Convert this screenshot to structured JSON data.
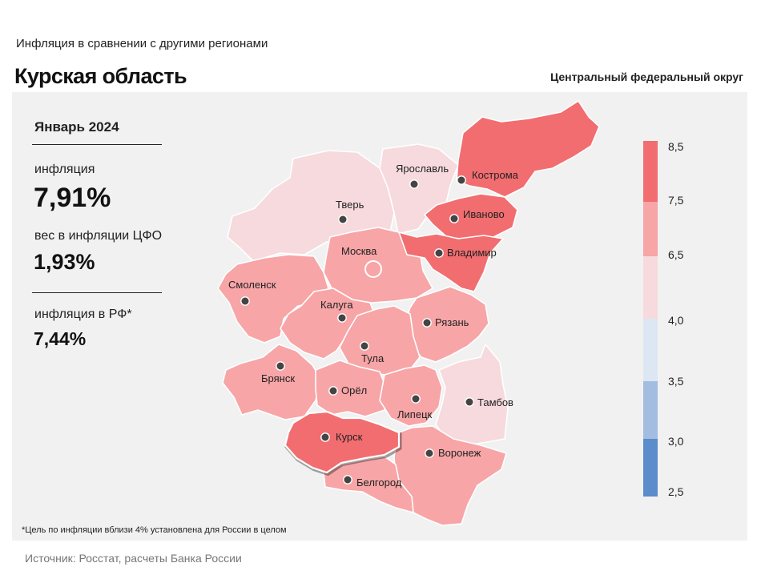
{
  "header": {
    "subtitle": "Инфляция  в сравнении  с другими  регионами",
    "title": "Курская область",
    "district": "Центральный федеральный округ"
  },
  "info": {
    "period": "Январь 2024",
    "inflation_label": "инфляция",
    "inflation_value": "7,91%",
    "weight_label": "вес в инфляции  ЦФО",
    "weight_value": "1,93%",
    "rf_label": "инфляция  в РФ*",
    "rf_value": "7,44%"
  },
  "footnote": "*Цель по инфляции вблизи 4% установлена для России в целом",
  "source": "Источник: Росстат, расчеты Банка России",
  "legend": {
    "ticks": [
      "8,5",
      "7,5",
      "6,5",
      "4,0",
      "3,5",
      "3,0",
      "2,5"
    ],
    "colors": [
      "#f26d70",
      "#f7a5a7",
      "#f7dadd",
      "#dce7f3",
      "#a3bde0",
      "#5b8ccb"
    ]
  },
  "colors": {
    "highlight": "#f26d70",
    "mid": "#f7a5a7",
    "light": "#f7dadd",
    "border": "#ffffff",
    "dot": "#444444"
  },
  "regions": [
    {
      "name": "Ярославль",
      "bin": "light"
    },
    {
      "name": "Кострома",
      "bin": "highlight"
    },
    {
      "name": "Тверь",
      "bin": "light"
    },
    {
      "name": "Иваново",
      "bin": "highlight"
    },
    {
      "name": "Москва",
      "bin": "mid"
    },
    {
      "name": "Владимир",
      "bin": "highlight"
    },
    {
      "name": "Смоленск",
      "bin": "mid"
    },
    {
      "name": "Калуга",
      "bin": "mid"
    },
    {
      "name": "Рязань",
      "bin": "mid"
    },
    {
      "name": "Тула",
      "bin": "mid"
    },
    {
      "name": "Брянск",
      "bin": "mid"
    },
    {
      "name": "Орёл",
      "bin": "mid"
    },
    {
      "name": "Липецк",
      "bin": "mid"
    },
    {
      "name": "Тамбов",
      "bin": "light"
    },
    {
      "name": "Курск",
      "bin": "highlight",
      "selected": true
    },
    {
      "name": "Воронеж",
      "bin": "mid"
    },
    {
      "name": "Белгород",
      "bin": "mid"
    }
  ]
}
